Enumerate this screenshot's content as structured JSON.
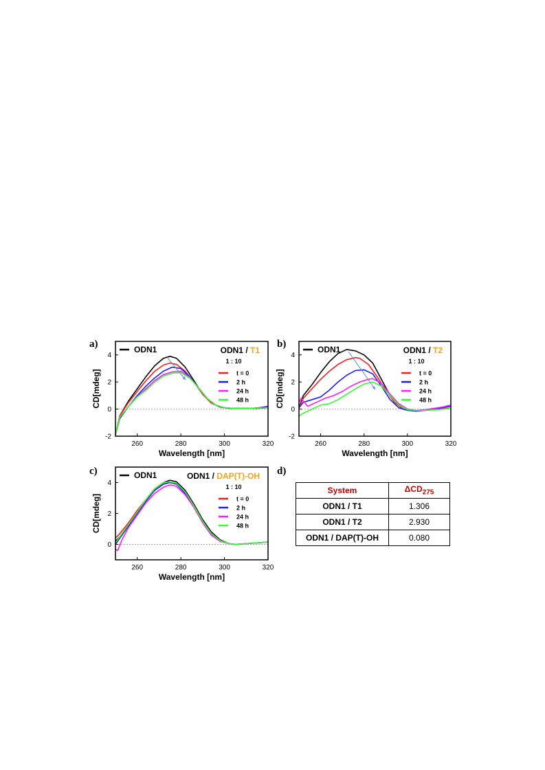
{
  "colors": {
    "odn1": "#000000",
    "t0": "#ff1a1a",
    "h2": "#1a1aff",
    "h24": "#ff1aff",
    "h48": "#33ff33",
    "ligand": "#f7a21b",
    "header": "#c00000",
    "arrow": "#5b8ed6"
  },
  "chart_data": [
    {
      "panel": "a)",
      "type": "line",
      "reference_legend": "ODN1",
      "title_prefix": "ODN1 / ",
      "title_ligand": "T1",
      "ratio": "1 : 10",
      "xlabel": "Wavelength [nm]",
      "ylabel": "CD[mdeg]",
      "xlim": [
        250,
        320
      ],
      "ylim": [
        -2,
        5
      ],
      "xticks": [
        "260",
        "280",
        "300",
        "320"
      ],
      "yticks": [
        "-2",
        "0",
        "2",
        "4"
      ],
      "series": [
        {
          "name": "",
          "color": "#000000",
          "x": [
            250,
            252,
            256,
            260,
            264,
            268,
            272,
            275,
            278,
            282,
            286,
            290,
            294,
            298,
            302,
            306,
            310,
            314,
            318,
            320
          ],
          "y": [
            -1.9,
            -0.5,
            0.6,
            1.5,
            2.4,
            3.2,
            3.75,
            3.9,
            3.75,
            3.1,
            2.1,
            1.1,
            0.45,
            0.15,
            0.05,
            0.05,
            0.05,
            0.05,
            0.08,
            0.1
          ]
        },
        {
          "name": "t = 0",
          "color": "#ff1a1a",
          "x": [
            250,
            252,
            256,
            260,
            264,
            268,
            272,
            275,
            278,
            282,
            286,
            290,
            294,
            298,
            302,
            306,
            310,
            314,
            318,
            320
          ],
          "y": [
            -1.9,
            -0.5,
            0.5,
            1.3,
            2.1,
            2.8,
            3.25,
            3.4,
            3.3,
            2.8,
            2.0,
            1.1,
            0.45,
            0.15,
            0.05,
            0.05,
            0.05,
            0.05,
            0.08,
            0.1
          ]
        },
        {
          "name": "2 h",
          "color": "#1a1aff",
          "x": [
            250,
            252,
            256,
            260,
            264,
            268,
            272,
            276,
            280,
            284,
            288,
            292,
            296,
            300,
            304,
            308,
            312,
            316,
            320
          ],
          "y": [
            -1.9,
            -0.7,
            0.2,
            1.0,
            1.7,
            2.3,
            2.8,
            3.1,
            3.0,
            2.4,
            1.6,
            0.8,
            0.3,
            0.1,
            0.05,
            0.05,
            0.05,
            0.1,
            0.2
          ]
        },
        {
          "name": "24 h",
          "color": "#ff1aff",
          "x": [
            250,
            252,
            256,
            260,
            264,
            268,
            272,
            276,
            280,
            284,
            288,
            292,
            296,
            300,
            304,
            308,
            312,
            316,
            320
          ],
          "y": [
            -1.9,
            -0.6,
            0.2,
            0.9,
            1.5,
            2.1,
            2.55,
            2.75,
            2.8,
            2.35,
            1.6,
            0.8,
            0.3,
            0.1,
            0.05,
            0.05,
            0.05,
            0.08,
            0.1
          ]
        },
        {
          "name": "48 h",
          "color": "#33ff33",
          "x": [
            250,
            252,
            256,
            260,
            264,
            268,
            272,
            276,
            280,
            284,
            288,
            292,
            296,
            300,
            304,
            308,
            312,
            316,
            320
          ],
          "y": [
            -1.9,
            -0.6,
            0.2,
            0.9,
            1.4,
            2.0,
            2.45,
            2.65,
            2.7,
            2.3,
            1.6,
            0.8,
            0.3,
            0.1,
            0.05,
            0.05,
            0.05,
            0.08,
            0.1
          ]
        }
      ]
    },
    {
      "panel": "b)",
      "type": "line",
      "reference_legend": "ODN1",
      "title_prefix": "ODN1 / ",
      "title_ligand": "T2",
      "ratio": "1 : 10",
      "xlabel": "Wavelength [nm]",
      "ylabel": "CD[mdeg]",
      "xlim": [
        250,
        320
      ],
      "ylim": [
        -2,
        5
      ],
      "xticks": [
        "260",
        "280",
        "300",
        "320"
      ],
      "yticks": [
        "-2",
        "0",
        "2",
        "4"
      ],
      "series": [
        {
          "name": "",
          "color": "#000000",
          "x": [
            250,
            252,
            256,
            260,
            264,
            268,
            272,
            276,
            280,
            284,
            288,
            292,
            296,
            300,
            304,
            308,
            312,
            316,
            320
          ],
          "y": [
            0.1,
            1.0,
            1.8,
            2.7,
            3.5,
            4.1,
            4.4,
            4.3,
            4.0,
            3.4,
            2.2,
            1.0,
            0.3,
            -0.05,
            -0.15,
            -0.1,
            -0.05,
            0.0,
            0.05
          ]
        },
        {
          "name": "t = 0",
          "color": "#ff1a1a",
          "x": [
            250,
            252,
            256,
            260,
            264,
            268,
            272,
            276,
            278,
            282,
            286,
            290,
            294,
            298,
            302,
            306,
            310,
            314,
            318,
            320
          ],
          "y": [
            0.1,
            0.8,
            1.5,
            2.2,
            2.8,
            3.3,
            3.65,
            3.8,
            3.75,
            3.3,
            2.4,
            1.4,
            0.5,
            0.0,
            -0.1,
            -0.1,
            -0.05,
            0.0,
            0.05,
            0.05
          ]
        },
        {
          "name": "2 h",
          "color": "#1a1aff",
          "x": [
            250,
            252,
            256,
            260,
            264,
            268,
            272,
            276,
            280,
            284,
            288,
            292,
            296,
            300,
            304,
            308,
            312,
            316,
            320
          ],
          "y": [
            0.1,
            0.5,
            0.7,
            0.9,
            1.4,
            2.0,
            2.5,
            2.85,
            2.9,
            2.6,
            1.7,
            0.7,
            0.1,
            -0.1,
            -0.15,
            -0.1,
            0.0,
            0.1,
            0.2
          ]
        },
        {
          "name": "24 h",
          "color": "#ff1aff",
          "x": [
            250,
            251,
            254,
            258,
            262,
            266,
            270,
            274,
            278,
            282,
            284,
            288,
            292,
            296,
            300,
            304,
            308,
            312,
            316,
            320
          ],
          "y": [
            0.5,
            0.8,
            0.2,
            0.5,
            0.8,
            1.0,
            1.3,
            1.7,
            2.0,
            2.2,
            2.25,
            1.9,
            1.1,
            0.4,
            0.0,
            -0.1,
            -0.05,
            0.05,
            0.15,
            0.3
          ]
        },
        {
          "name": "48 h",
          "color": "#33ff33",
          "x": [
            250,
            252,
            256,
            260,
            264,
            268,
            272,
            276,
            280,
            284,
            288,
            292,
            296,
            300,
            304,
            308,
            312,
            316,
            320
          ],
          "y": [
            -0.5,
            -0.3,
            0.0,
            0.3,
            0.4,
            0.7,
            1.1,
            1.5,
            1.85,
            2.0,
            1.7,
            1.0,
            0.3,
            -0.05,
            -0.1,
            -0.1,
            -0.05,
            0.0,
            0.05
          ]
        }
      ]
    },
    {
      "panel": "c)",
      "type": "line",
      "reference_legend": "ODN1",
      "title_prefix": "ODN1 / ",
      "title_ligand": "DAP(T)-OH",
      "ratio": "1 : 10",
      "xlabel": "Wavelength [nm]",
      "ylabel": "CD[mdeg]",
      "xlim": [
        250,
        320
      ],
      "ylim": [
        -1,
        5
      ],
      "xticks": [
        "260",
        "280",
        "300",
        "320"
      ],
      "yticks": [
        "0",
        "2",
        "4"
      ],
      "series": [
        {
          "name": "",
          "color": "#000000",
          "x": [
            250,
            252,
            256,
            260,
            264,
            268,
            272,
            275,
            278,
            282,
            286,
            290,
            294,
            298,
            302,
            305,
            310,
            315,
            320
          ],
          "y": [
            0.2,
            0.5,
            1.3,
            2.1,
            2.9,
            3.6,
            4.0,
            4.15,
            4.05,
            3.5,
            2.6,
            1.6,
            0.8,
            0.3,
            0.05,
            0.0,
            0.05,
            0.1,
            0.15
          ]
        },
        {
          "name": "t = 0",
          "color": "#ff1a1a",
          "x": [
            250,
            252,
            256,
            260,
            264,
            268,
            272,
            275,
            278,
            282,
            286,
            290,
            294,
            298,
            302,
            305,
            310,
            315,
            320
          ],
          "y": [
            0.4,
            0.7,
            1.4,
            2.2,
            2.9,
            3.5,
            3.9,
            4.0,
            3.9,
            3.4,
            2.5,
            1.5,
            0.7,
            0.25,
            0.05,
            0.0,
            0.05,
            0.1,
            0.15
          ]
        },
        {
          "name": "2 h",
          "color": "#1a1aff",
          "x": [
            250,
            252,
            256,
            260,
            264,
            268,
            272,
            275,
            278,
            282,
            286,
            290,
            294,
            298,
            302,
            305,
            310,
            315,
            320
          ],
          "y": [
            0.0,
            0.4,
            1.2,
            2.0,
            2.8,
            3.5,
            3.9,
            4.0,
            3.9,
            3.3,
            2.4,
            1.4,
            0.6,
            0.2,
            0.05,
            0.0,
            0.05,
            0.1,
            0.15
          ]
        },
        {
          "name": "24 h",
          "color": "#ff1aff",
          "x": [
            250,
            251,
            253,
            256,
            260,
            264,
            268,
            272,
            275,
            278,
            282,
            286,
            290,
            294,
            298,
            302,
            305,
            310,
            315,
            320
          ],
          "y": [
            -0.3,
            -0.4,
            0.3,
            1.1,
            1.9,
            2.7,
            3.3,
            3.7,
            3.85,
            3.75,
            3.2,
            2.4,
            1.4,
            0.6,
            0.2,
            0.05,
            0.0,
            0.05,
            0.1,
            0.15
          ]
        },
        {
          "name": "48 h",
          "color": "#33ff33",
          "x": [
            250,
            252,
            256,
            260,
            264,
            268,
            272,
            275,
            278,
            282,
            286,
            290,
            294,
            298,
            302,
            305,
            310,
            315,
            320
          ],
          "y": [
            0.1,
            0.5,
            1.3,
            2.1,
            2.9,
            3.6,
            4.0,
            4.05,
            3.95,
            3.4,
            2.5,
            1.5,
            0.7,
            0.25,
            0.05,
            0.0,
            0.05,
            0.1,
            0.15
          ]
        }
      ]
    }
  ],
  "panel_d": {
    "label": "d)",
    "header_system": "System",
    "header_delta": "ΔCD",
    "header_delta_sub": "275",
    "rows": [
      {
        "system": "ODN1 / T1",
        "value": "1.306"
      },
      {
        "system": "ODN1 / T2",
        "value": "2.930"
      },
      {
        "system": "ODN1 / DAP(T)-OH",
        "value": "0.080"
      }
    ]
  }
}
